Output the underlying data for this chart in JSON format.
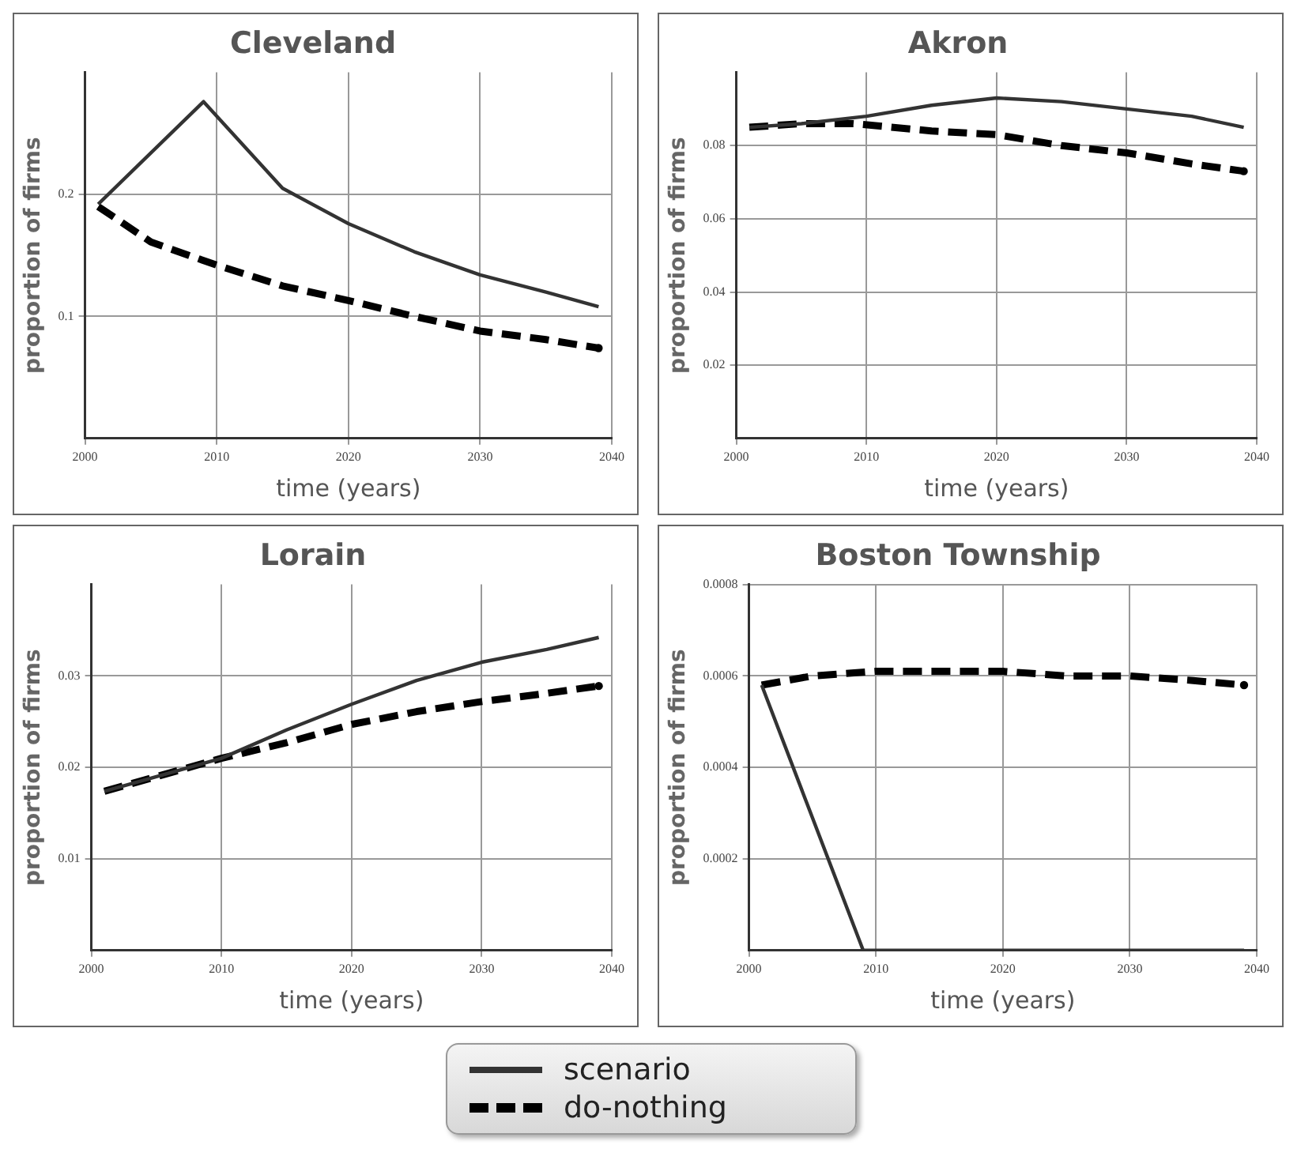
{
  "chart_data": [
    {
      "type": "line",
      "title": "Cleveland",
      "xlabel": "time (years)",
      "ylabel": "proportion of firms",
      "xlim": [
        2000,
        2040
      ],
      "xticks": [
        2000,
        2010,
        2020,
        2030,
        2040
      ],
      "ylim": [
        0,
        0.3
      ],
      "yticks": [
        0.1,
        0.2
      ],
      "grid": true,
      "series": [
        {
          "color": "#333333",
          "line_style": "solid",
          "x": [
            2001,
            2009,
            2015,
            2020,
            2025,
            2030,
            2035,
            2039
          ],
          "values": [
            0.192,
            0.276,
            0.205,
            0.176,
            0.153,
            0.134,
            0.12,
            0.108
          ]
        },
        {
          "color": "#000000",
          "line_style": "dashed",
          "x": [
            2001,
            2005,
            2010,
            2015,
            2020,
            2025,
            2030,
            2035,
            2039
          ],
          "values": [
            0.19,
            0.161,
            0.142,
            0.125,
            0.113,
            0.1,
            0.088,
            0.081,
            0.074
          ]
        }
      ]
    },
    {
      "type": "line",
      "title": "Akron",
      "xlabel": "time (years)",
      "ylabel": "proportion of firms",
      "xlim": [
        2000,
        2040
      ],
      "xticks": [
        2000,
        2010,
        2020,
        2030,
        2040
      ],
      "ylim": [
        0,
        0.1
      ],
      "yticks": [
        0.02,
        0.04,
        0.06,
        0.08
      ],
      "grid": true,
      "series": [
        {
          "color": "#333333",
          "line_style": "solid",
          "x": [
            2001,
            2005,
            2010,
            2015,
            2020,
            2025,
            2030,
            2035,
            2039
          ],
          "values": [
            0.085,
            0.086,
            0.088,
            0.091,
            0.093,
            0.092,
            0.09,
            0.088,
            0.085
          ]
        },
        {
          "color": "#000000",
          "line_style": "dashed",
          "x": [
            2001,
            2005,
            2009,
            2015,
            2020,
            2025,
            2030,
            2035,
            2039
          ],
          "values": [
            0.085,
            0.086,
            0.086,
            0.084,
            0.083,
            0.08,
            0.078,
            0.075,
            0.073
          ]
        }
      ]
    },
    {
      "type": "line",
      "title": "Lorain",
      "xlabel": "time (years)",
      "ylabel": "proportion of firms",
      "xlim": [
        2000,
        2040
      ],
      "xticks": [
        2000,
        2010,
        2020,
        2030,
        2040
      ],
      "ylim": [
        0,
        0.04
      ],
      "yticks": [
        0.01,
        0.02,
        0.03
      ],
      "grid": true,
      "series": [
        {
          "color": "#333333",
          "line_style": "solid",
          "x": [
            2001,
            2005,
            2010,
            2015,
            2020,
            2025,
            2030,
            2035,
            2039
          ],
          "values": [
            0.0174,
            0.019,
            0.021,
            0.0241,
            0.0269,
            0.0295,
            0.0315,
            0.0329,
            0.0342
          ]
        },
        {
          "color": "#000000",
          "line_style": "dashed",
          "x": [
            2001,
            2005,
            2010,
            2015,
            2020,
            2025,
            2030,
            2035,
            2039
          ],
          "values": [
            0.0174,
            0.019,
            0.021,
            0.0227,
            0.0247,
            0.0261,
            0.0272,
            0.0281,
            0.0289
          ]
        }
      ]
    },
    {
      "type": "line",
      "title": "Boston Township",
      "xlabel": "time (years)",
      "ylabel": "proportion of firms",
      "xlim": [
        2000,
        2040
      ],
      "xticks": [
        2000,
        2010,
        2020,
        2030,
        2040
      ],
      "ylim": [
        0,
        0.0008
      ],
      "yticks": [
        0.0002,
        0.0004,
        0.0006,
        0.0008
      ],
      "grid": true,
      "legend": "bottom",
      "series": [
        {
          "name": "scenario",
          "color": "#333333",
          "line_style": "solid",
          "x": [
            2001,
            2009,
            2039
          ],
          "values": [
            0.00058,
            0,
            0
          ]
        },
        {
          "name": "do-nothing",
          "color": "#000000",
          "line_style": "dashed",
          "x": [
            2001,
            2005,
            2010,
            2015,
            2020,
            2025,
            2030,
            2035,
            2039
          ],
          "values": [
            0.00058,
            0.0006,
            0.00061,
            0.00061,
            0.00061,
            0.0006,
            0.0006,
            0.00059,
            0.00058
          ]
        }
      ]
    }
  ]
}
